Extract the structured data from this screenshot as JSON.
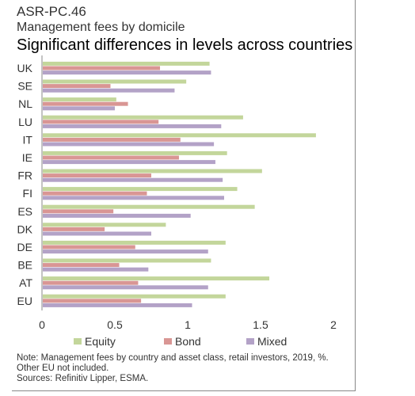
{
  "header": {
    "code": "ASR-PC.46",
    "subtitle": "Management fees by domicile",
    "headline": "Significant differences in levels across countries"
  },
  "notes": {
    "line1": "Note: Management fees by country and asset class, retail investors, 2019, %.",
    "line2": "Other EU not included.",
    "line3": "Sources: Refinitiv Lipper, ESMA."
  },
  "colors": {
    "Equity": "#c3d69b",
    "Bond": "#d99694",
    "Mixed": "#b3a2c7"
  },
  "chart_data": {
    "type": "bar",
    "orientation": "horizontal",
    "categories": [
      "UK",
      "SE",
      "NL",
      "LU",
      "IT",
      "IE",
      "FR",
      "FI",
      "ES",
      "DK",
      "DE",
      "BE",
      "AT",
      "EU"
    ],
    "series": [
      {
        "name": "Equity",
        "values": [
          1.15,
          0.99,
          0.51,
          1.38,
          1.88,
          1.27,
          1.51,
          1.34,
          1.46,
          0.85,
          1.26,
          1.16,
          1.56,
          1.26
        ]
      },
      {
        "name": "Bond",
        "values": [
          0.81,
          0.47,
          0.59,
          0.8,
          0.95,
          0.94,
          0.75,
          0.72,
          0.49,
          0.43,
          0.64,
          0.53,
          0.66,
          0.68
        ]
      },
      {
        "name": "Mixed",
        "values": [
          1.16,
          0.91,
          0.5,
          1.23,
          1.18,
          1.19,
          1.24,
          1.25,
          1.02,
          0.75,
          1.14,
          0.73,
          1.14,
          1.03
        ]
      }
    ],
    "xlim": [
      0,
      2
    ],
    "xticks": [
      "0",
      "0.5",
      "1",
      "1.5",
      "2"
    ],
    "grid": false,
    "legend": "bottom"
  }
}
